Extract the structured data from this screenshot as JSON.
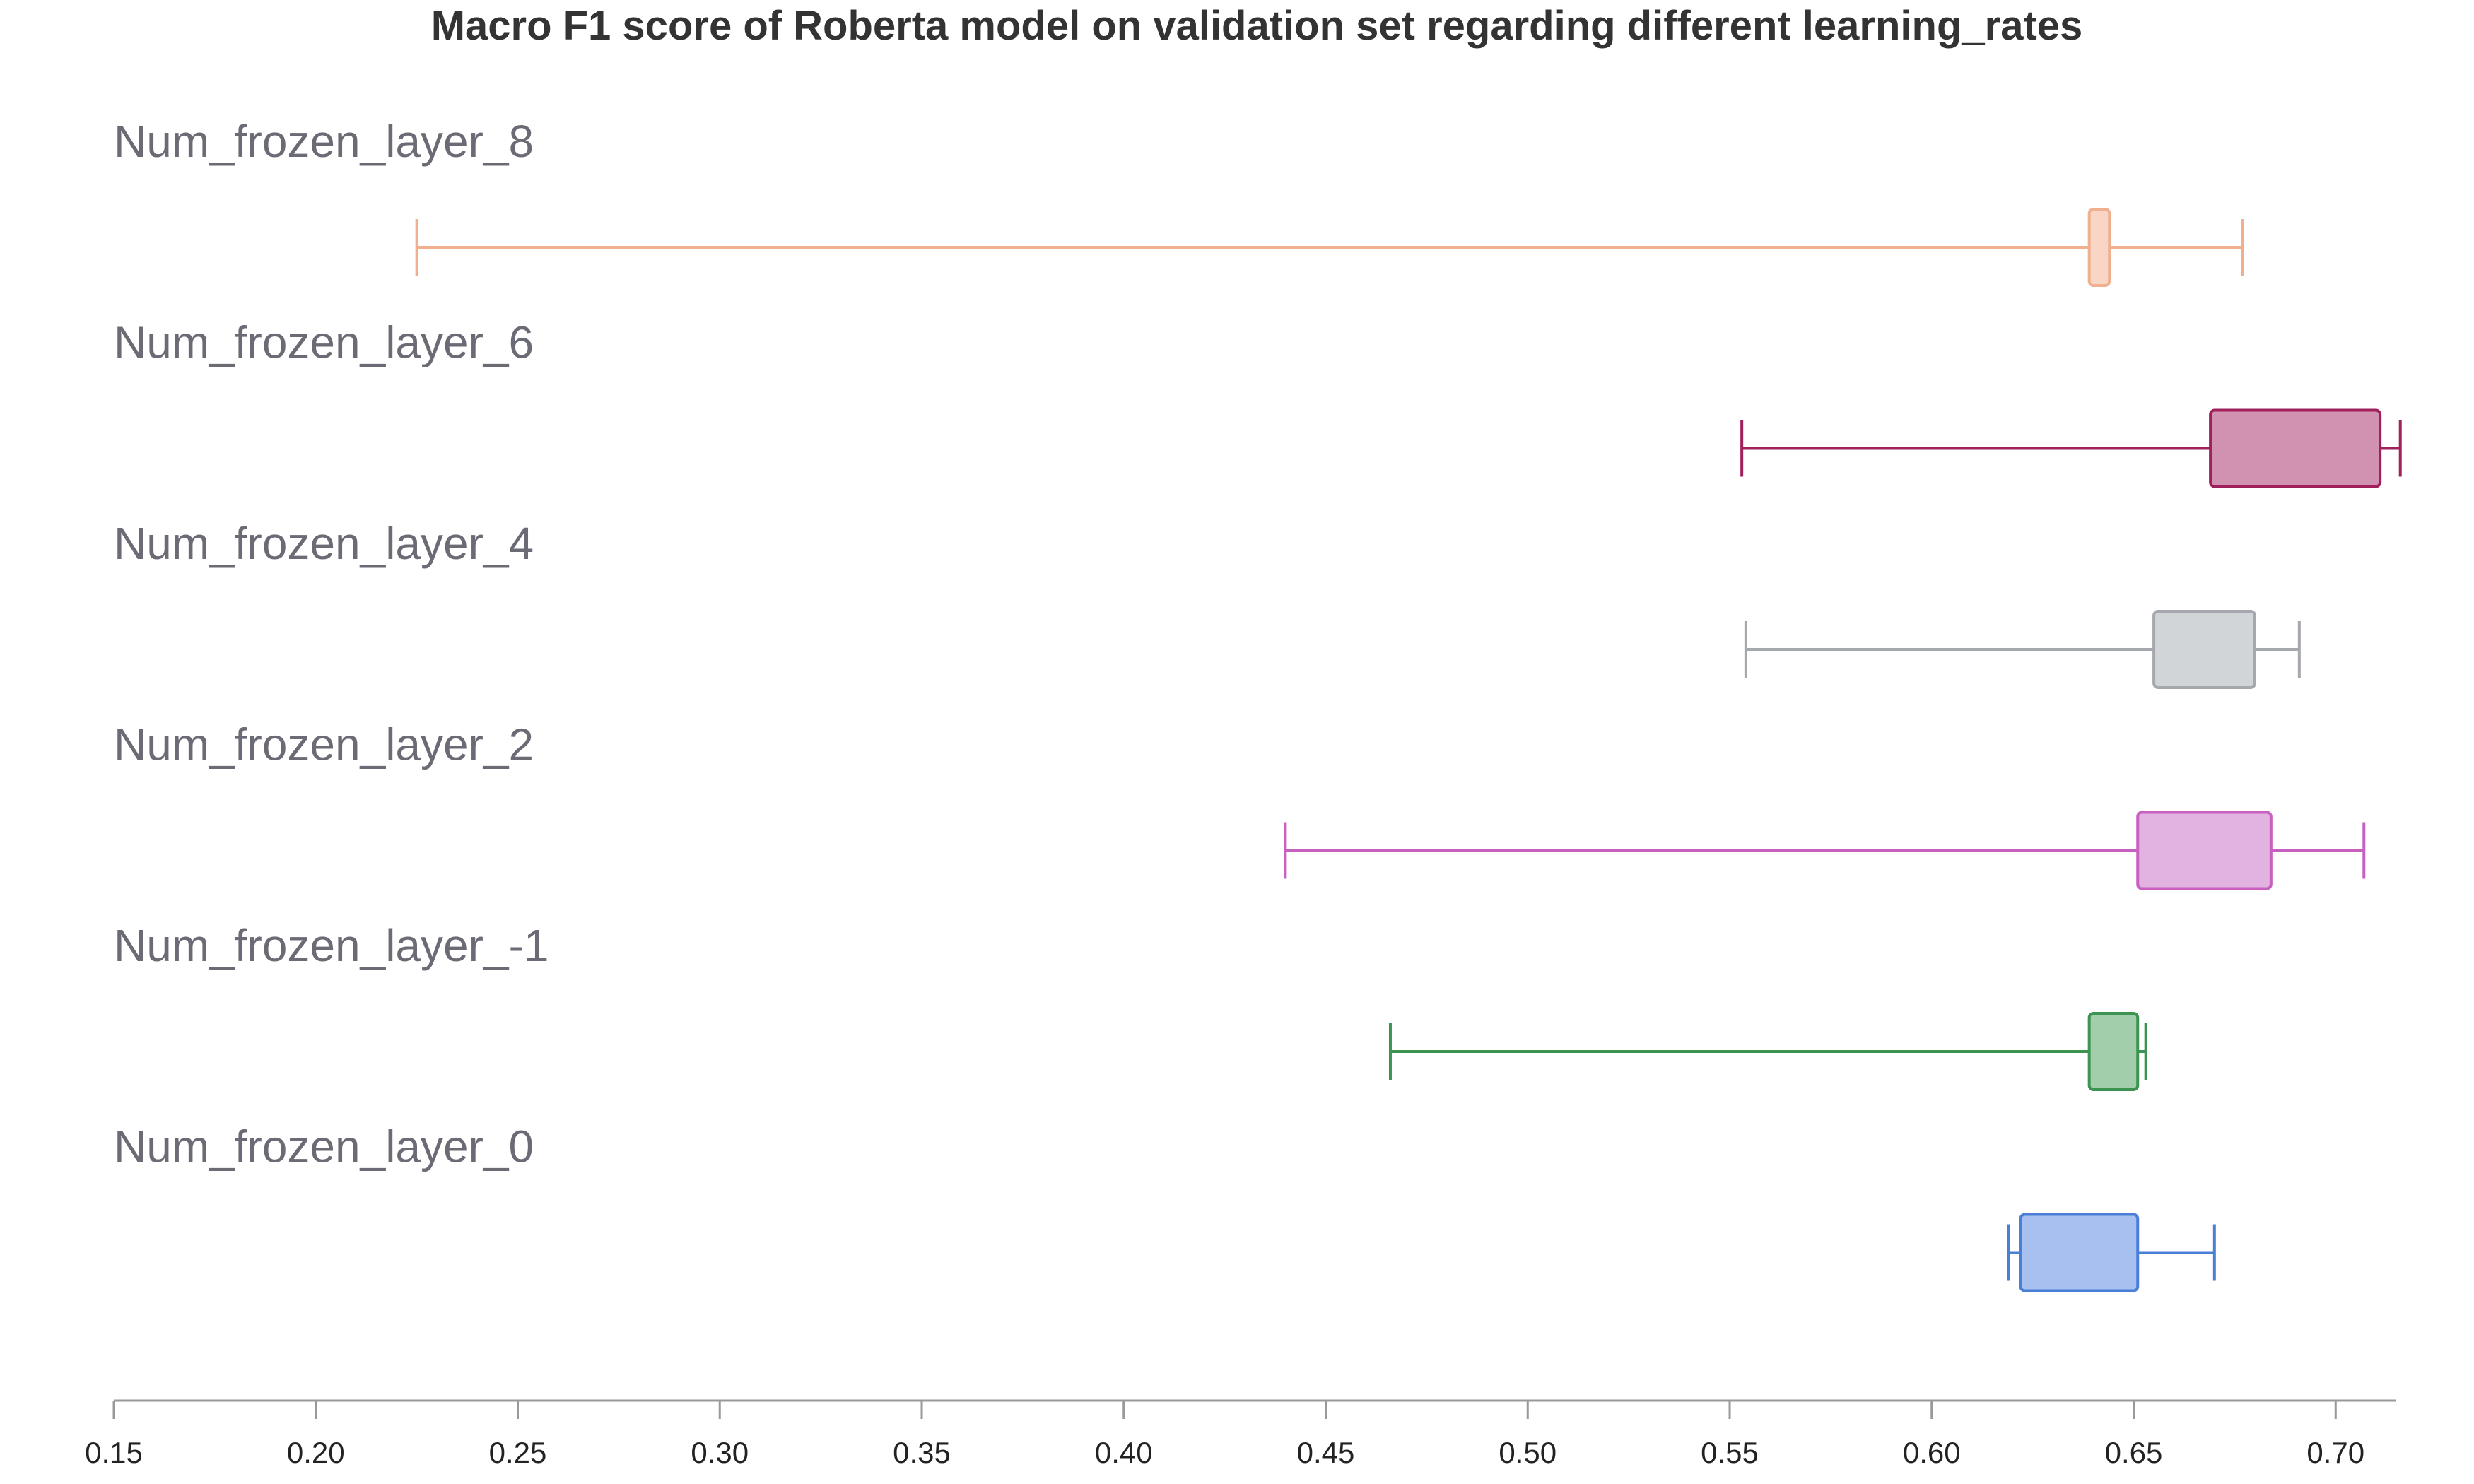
{
  "chart_data": {
    "type": "box",
    "orientation": "horizontal",
    "title": "Macro F1 score of Roberta model on validation set regarding different learning_rates",
    "xlabel": "",
    "ylabel": "",
    "xlim": [
      0.15,
      0.715
    ],
    "x_ticks": [
      "0.15",
      "0.20",
      "0.25",
      "0.30",
      "0.35",
      "0.40",
      "0.45",
      "0.50",
      "0.55",
      "0.60",
      "0.65",
      "0.70"
    ],
    "grid": false,
    "series": [
      {
        "name": "Num_frozen_layer_8",
        "min": 0.225,
        "q1": 0.639,
        "median": 0.642,
        "q3": 0.644,
        "max": 0.677,
        "fill": "#f8d5c4",
        "stroke": "#f0b090"
      },
      {
        "name": "Num_frozen_layer_6",
        "min": 0.553,
        "q1": 0.669,
        "median": 0.69,
        "q3": 0.711,
        "max": 0.716,
        "fill": "#d092b0",
        "stroke": "#a0205c"
      },
      {
        "name": "Num_frozen_layer_4",
        "min": 0.554,
        "q1": 0.655,
        "median": 0.668,
        "q3": 0.68,
        "max": 0.691,
        "fill": "#d2d5d8",
        "stroke": "#a5a8ad"
      },
      {
        "name": "Num_frozen_layer_2",
        "min": 0.44,
        "q1": 0.651,
        "median": 0.668,
        "q3": 0.684,
        "max": 0.707,
        "fill": "#e2b2e0",
        "stroke": "#c860c0"
      },
      {
        "name": "Num_frozen_layer_-1",
        "min": 0.466,
        "q1": 0.639,
        "median": 0.645,
        "q3": 0.651,
        "max": 0.653,
        "fill": "#a3ceac",
        "stroke": "#3c9450"
      },
      {
        "name": "Num_frozen_layer_0",
        "min": 0.619,
        "q1": 0.622,
        "median": 0.636,
        "q3": 0.651,
        "max": 0.67,
        "fill": "#a8c0f0",
        "stroke": "#4a7fd8"
      }
    ]
  }
}
